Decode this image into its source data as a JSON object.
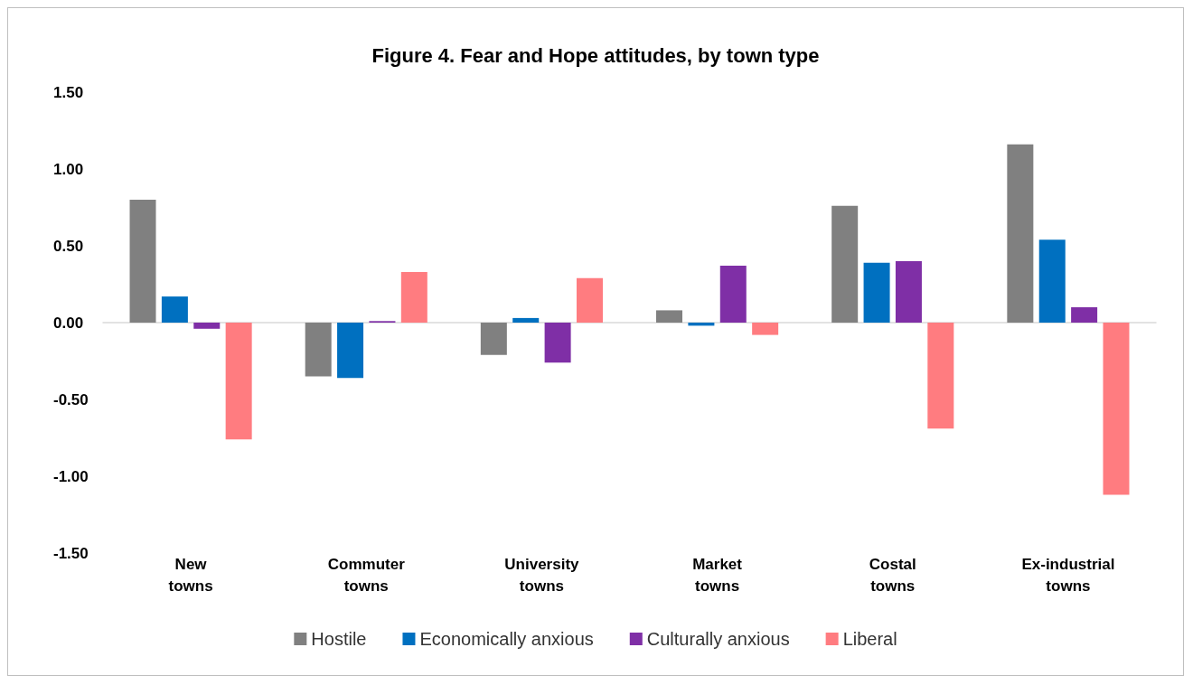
{
  "chart_data": {
    "type": "bar",
    "title": "Figure 4. Fear and Hope attitudes, by town type",
    "categories": [
      "New towns",
      "Commuter towns",
      "University towns",
      "Market towns",
      "Costal towns",
      "Ex-industrial towns"
    ],
    "series": [
      {
        "name": "Hostile",
        "color": "#808080",
        "values": [
          0.8,
          -0.35,
          -0.21,
          0.08,
          0.76,
          1.16
        ]
      },
      {
        "name": "Economically anxious",
        "color": "#0070c0",
        "values": [
          0.17,
          -0.36,
          0.03,
          -0.02,
          0.39,
          0.54
        ]
      },
      {
        "name": "Culturally anxious",
        "color": "#7f2fa6",
        "values": [
          -0.04,
          0.01,
          -0.26,
          0.37,
          0.4,
          0.1
        ]
      },
      {
        "name": "Liberal",
        "color": "#ff7c80",
        "values": [
          -0.76,
          0.33,
          0.29,
          -0.08,
          -0.69,
          -1.12
        ]
      }
    ],
    "ylim": [
      -1.5,
      1.5
    ],
    "yticks": [
      {
        "value": -1.5,
        "label": "-1.50"
      },
      {
        "value": -1,
        "label": "-1.00"
      },
      {
        "value": -0.5,
        "label": "-0.50"
      },
      {
        "value": 0,
        "label": "0.00"
      },
      {
        "value": 0.5,
        "label": "0.50"
      },
      {
        "value": 1,
        "label": "1.00"
      },
      {
        "value": 1.5,
        "label": "1.50"
      }
    ],
    "legend": "bottom"
  }
}
